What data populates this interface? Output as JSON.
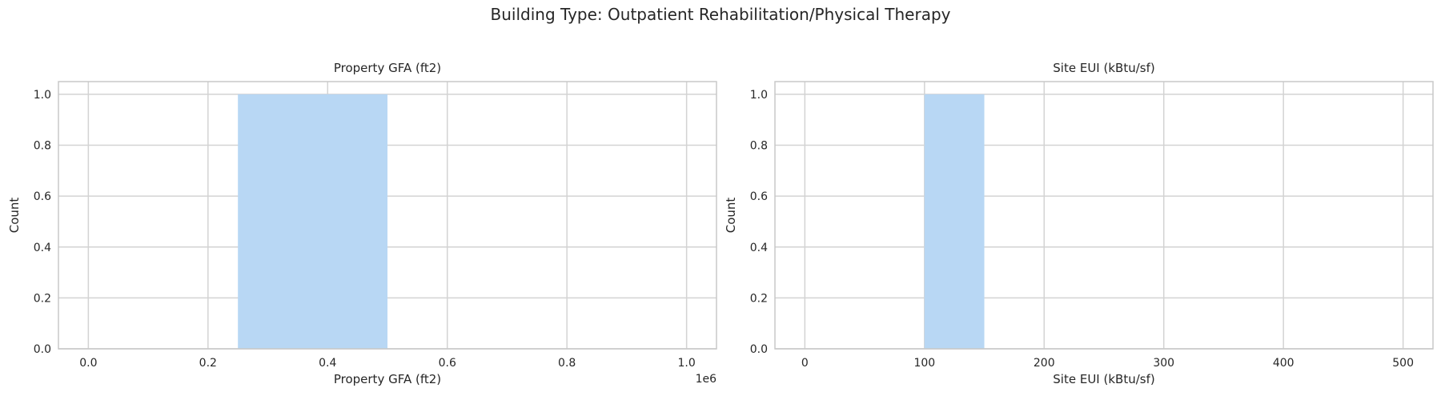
{
  "suptitle": "Building Type: Outpatient Rehabilitation/Physical Therapy",
  "colors": {
    "bar": "#b8d7f4",
    "grid": "#d3d3d3",
    "spine": "#c8c8c8",
    "text": "#262626"
  },
  "chart_data": [
    {
      "type": "bar",
      "title": "Property GFA (ft2)",
      "xlabel": "Property GFA (ft2)",
      "ylabel": "Count",
      "x_offset_label": "1e6",
      "xlim": [
        -0.05,
        1.05
      ],
      "ylim": [
        0,
        1.05
      ],
      "xticks": [
        0.0,
        0.2,
        0.4,
        0.6,
        0.8,
        1.0
      ],
      "xtick_labels": [
        "0.0",
        "0.2",
        "0.4",
        "0.6",
        "0.8",
        "1.0"
      ],
      "yticks": [
        0.0,
        0.2,
        0.4,
        0.6,
        0.8,
        1.0
      ],
      "ytick_labels": [
        "0.0",
        "0.2",
        "0.4",
        "0.6",
        "0.8",
        "1.0"
      ],
      "bins": [
        {
          "x0": 0.0,
          "x1": 0.25,
          "count": 0
        },
        {
          "x0": 0.25,
          "x1": 0.5,
          "count": 1
        },
        {
          "x0": 0.5,
          "x1": 0.75,
          "count": 0
        },
        {
          "x0": 0.75,
          "x1": 1.0,
          "count": 0
        }
      ],
      "grid": true
    },
    {
      "type": "bar",
      "title": "Site EUI (kBtu/sf)",
      "xlabel": "Site EUI (kBtu/sf)",
      "ylabel": "Count",
      "x_offset_label": "",
      "xlim": [
        -25,
        525
      ],
      "ylim": [
        0,
        1.05
      ],
      "xticks": [
        0,
        100,
        200,
        300,
        400,
        500
      ],
      "xtick_labels": [
        "0",
        "100",
        "200",
        "300",
        "400",
        "500"
      ],
      "yticks": [
        0.0,
        0.2,
        0.4,
        0.6,
        0.8,
        1.0
      ],
      "ytick_labels": [
        "0.0",
        "0.2",
        "0.4",
        "0.6",
        "0.8",
        "1.0"
      ],
      "bins": [
        {
          "x0": 0,
          "x1": 50,
          "count": 0
        },
        {
          "x0": 50,
          "x1": 100,
          "count": 0
        },
        {
          "x0": 100,
          "x1": 150,
          "count": 1
        },
        {
          "x0": 150,
          "x1": 200,
          "count": 0
        },
        {
          "x0": 200,
          "x1": 250,
          "count": 0
        },
        {
          "x0": 250,
          "x1": 300,
          "count": 0
        },
        {
          "x0": 300,
          "x1": 350,
          "count": 0
        },
        {
          "x0": 350,
          "x1": 400,
          "count": 0
        },
        {
          "x0": 400,
          "x1": 450,
          "count": 0
        },
        {
          "x0": 450,
          "x1": 500,
          "count": 0
        }
      ],
      "grid": true
    }
  ]
}
